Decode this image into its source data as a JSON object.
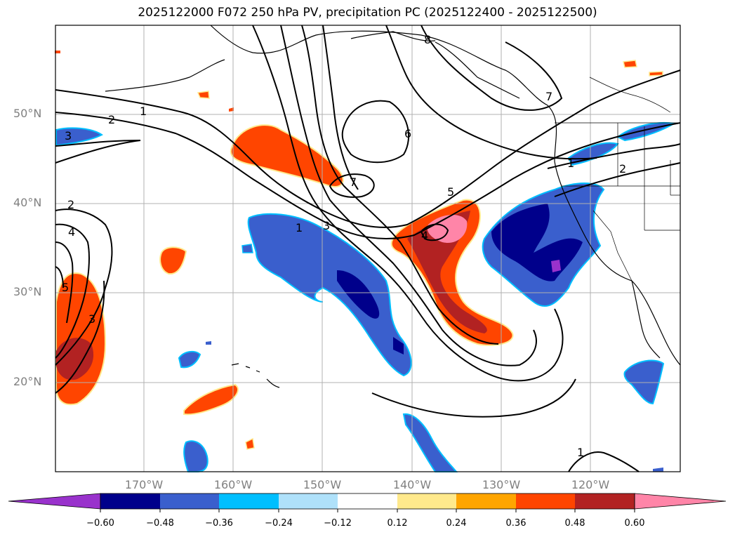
{
  "title": "2025122000 F072 250 hPa PV, precipitation PC (2025122400 - 2025122500)",
  "map": {
    "lat_labels": [
      "50°N",
      "40°N",
      "30°N",
      "20°N"
    ],
    "lon_labels": [
      "170°W",
      "160°W",
      "150°W",
      "140°W",
      "130°W",
      "120°W"
    ],
    "contour_labels": [
      "1",
      "2",
      "3",
      "4",
      "5",
      "6",
      "7",
      "8"
    ],
    "pv_contour_labels_shown": [
      "1",
      "2",
      "3",
      "2",
      "4",
      "5",
      "3",
      "6",
      "7",
      "8",
      "7",
      "5",
      "4",
      "1",
      "3",
      "2",
      "1",
      "1"
    ]
  },
  "colorbar": {
    "ticks": [
      "−0.60",
      "−0.48",
      "−0.36",
      "−0.24",
      "−0.12",
      "0.12",
      "0.24",
      "0.36",
      "0.48",
      "0.60"
    ],
    "colors": [
      "#9932cc",
      "#00008b",
      "#3a5fcd",
      "#00bfff",
      "#afe1fa",
      "#ffffff",
      "#ffe98c",
      "#ffa500",
      "#ff4500",
      "#b22222",
      "#ff85a8"
    ]
  }
}
